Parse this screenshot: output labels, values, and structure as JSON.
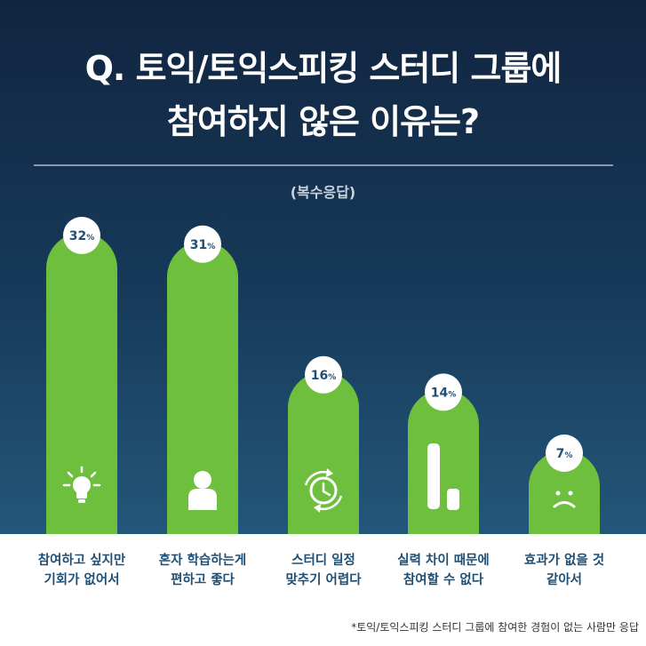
{
  "header": {
    "title_line1": "Q. 토익/토익스피킹 스터디 그룹에",
    "title_line2": "참여하지 않은 이유는?",
    "subtitle": "(복수응답)"
  },
  "colors": {
    "bar": "#6fbf3e",
    "label_text": "#1f4f74",
    "value_text": "#1f4f74",
    "background_top": "#112540",
    "background_bottom": "#23577a"
  },
  "chart_data": {
    "type": "bar",
    "title": "Q. 토익/토익스피킹 스터디 그룹에 참여하지 않은 이유는?",
    "subtitle": "(복수응답)",
    "unit": "%",
    "categories": [
      "참여하고 싶지만 기회가 없어서",
      "혼자 학습하는게 편하고 좋다",
      "스터디 일정 맞추기 어렵다",
      "실력 차이 때문에 참여할 수 없다",
      "효과가 없을 것 같아서"
    ],
    "values": [
      32,
      31,
      16,
      14,
      7
    ],
    "value_labels": [
      "32%",
      "31%",
      "16%",
      "14%",
      "7%"
    ],
    "category_lines": [
      [
        "참여하고 싶지만",
        "기회가 없어서"
      ],
      [
        "혼자 학습하는게",
        "편하고 좋다"
      ],
      [
        "스터디 일정",
        "맞추기 어렵다"
      ],
      [
        "실력 차이 때문에",
        "참여할 수 없다"
      ],
      [
        "효과가 없을 것",
        "같아서"
      ]
    ],
    "icons": [
      "lightbulb-icon",
      "person-icon",
      "clock-refresh-icon",
      "bar-gap-icon",
      "sad-face-icon"
    ],
    "ylim": [
      0,
      32
    ],
    "grid": false,
    "legend": "none"
  },
  "footnote": "*토익/토익스피킹 스터디 그룹에 참여한 경험이 없는 사람만 응답"
}
